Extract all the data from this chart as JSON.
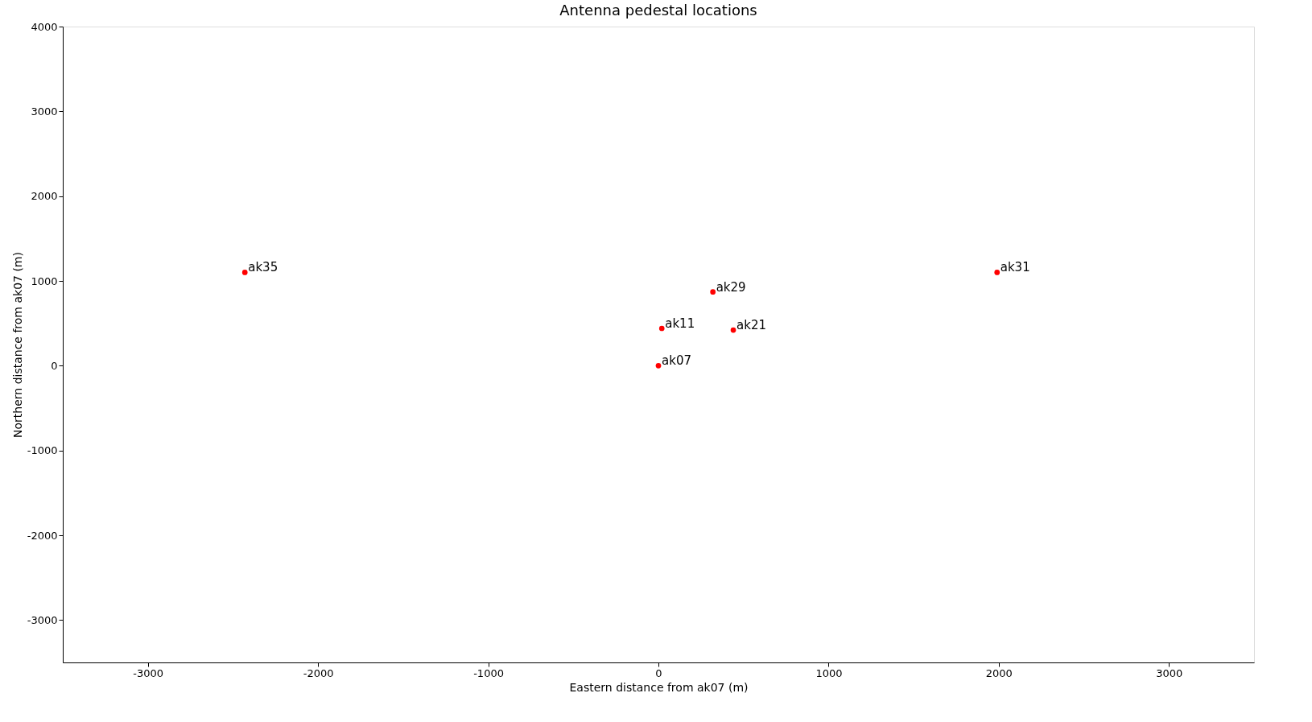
{
  "chart_data": {
    "type": "scatter",
    "title": "Antenna pedestal locations",
    "xlabel": "Eastern distance from ak07 (m)",
    "ylabel": "Northern distance from ak07 (m)",
    "x": [
      -2430,
      320,
      20,
      440,
      0,
      1990
    ],
    "series": [
      {
        "color": "#ff0000",
        "values": [
          1100,
          870,
          440,
          420,
          0,
          1100
        ]
      }
    ],
    "annotations": [
      {
        "text": "ak35",
        "x": -2430,
        "y": 1100
      },
      {
        "text": "ak29",
        "x": 320,
        "y": 870
      },
      {
        "text": "ak11",
        "x": 20,
        "y": 440
      },
      {
        "text": "ak21",
        "x": 440,
        "y": 420
      },
      {
        "text": "ak07",
        "x": 0,
        "y": 0
      },
      {
        "text": "ak31",
        "x": 1990,
        "y": 1100
      }
    ],
    "xlim": [
      -3500,
      3500
    ],
    "ylim": [
      -3500,
      4000
    ],
    "xticks": [
      -3000,
      -2000,
      -1000,
      0,
      1000,
      2000,
      3000
    ],
    "yticks": [
      -3000,
      -2000,
      -1000,
      0,
      1000,
      2000,
      3000,
      4000
    ],
    "grid": false,
    "marker": "circle"
  }
}
